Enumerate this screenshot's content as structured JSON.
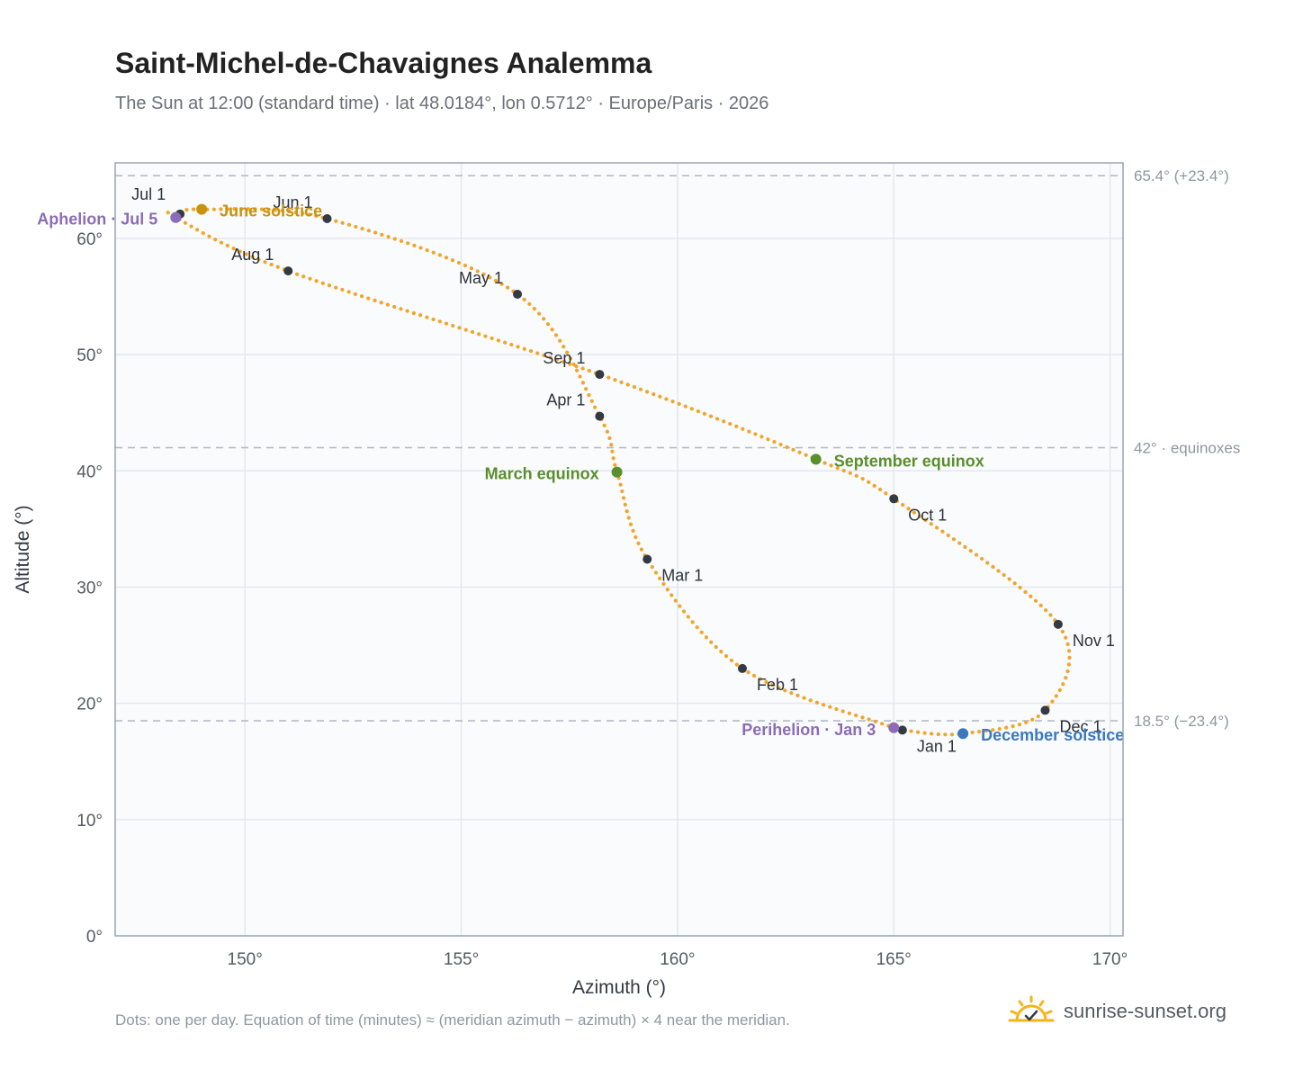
{
  "title": "Saint-Michel-de-Chavaignes Analemma",
  "subtitle": "The Sun at 12:00 (standard time) · lat 48.0184°, lon 0.5712° · Europe/Paris · 2026",
  "footnote": "Dots: one per day. Equation of time (minutes) ≈ (meridian azimuth − azimuth) × 4 near the meridian.",
  "brand": {
    "text": "sunrise-sunset.org",
    "icon": "sun-logo-icon"
  },
  "colors": {
    "curve": "#f2a52a",
    "month_marker": "#333a44",
    "solstice_june": "#c8930f",
    "solstice_december": "#3b78c0",
    "equinox": "#5a8f2c",
    "apsis": "#8c6cb8",
    "reference_line": "#b0b8c4",
    "plot_background": "#f9fbfd",
    "grid": "#e4e8ee"
  },
  "chart_data": {
    "type": "scatter",
    "xlabel": "Azimuth (°)",
    "ylabel": "Altitude (°)",
    "xlim": [
      147,
      170.3
    ],
    "ylim": [
      0,
      66.5
    ],
    "xticks": [
      150,
      155,
      160,
      165,
      170
    ],
    "yticks": [
      0,
      10,
      20,
      30,
      40,
      50,
      60
    ],
    "x_tick_labels": [
      "150°",
      "155°",
      "160°",
      "165°",
      "170°"
    ],
    "y_tick_labels": [
      "0°",
      "10°",
      "20°",
      "30°",
      "40°",
      "50°",
      "60°"
    ],
    "grid": true,
    "reference_lines": [
      {
        "altitude": 65.4,
        "label": "65.4° (+23.4°)"
      },
      {
        "altitude": 42.0,
        "label": "42° · equinoxes"
      },
      {
        "altitude": 18.5,
        "label": "18.5° (−23.4°)"
      }
    ],
    "analemma_path": [
      {
        "date": "Jan 1",
        "azimuth": 165.2,
        "altitude": 17.7
      },
      {
        "date": "Jan 3",
        "azimuth": 165.0,
        "altitude": 17.9
      },
      {
        "date": "Feb 1",
        "azimuth": 161.5,
        "altitude": 23.0
      },
      {
        "date": "Mar 1",
        "azimuth": 159.3,
        "altitude": 32.4
      },
      {
        "date": "Mar 20",
        "azimuth": 158.6,
        "altitude": 39.9
      },
      {
        "date": "Apr 1",
        "azimuth": 158.2,
        "altitude": 44.7
      },
      {
        "date": "May 1",
        "azimuth": 156.3,
        "altitude": 55.2
      },
      {
        "date": "Jun 1",
        "azimuth": 151.9,
        "altitude": 61.7
      },
      {
        "date": "Jun 21",
        "azimuth": 149.0,
        "altitude": 62.5
      },
      {
        "date": "Jul 1",
        "azimuth": 148.5,
        "altitude": 62.1
      },
      {
        "date": "Jul 5",
        "azimuth": 148.4,
        "altitude": 61.8
      },
      {
        "date": "Aug 1",
        "azimuth": 151.0,
        "altitude": 57.2
      },
      {
        "date": "Sep 1",
        "azimuth": 158.2,
        "altitude": 48.3
      },
      {
        "date": "Sep 23",
        "azimuth": 163.2,
        "altitude": 41.0
      },
      {
        "date": "Oct 1",
        "azimuth": 165.0,
        "altitude": 37.6
      },
      {
        "date": "Nov 1",
        "azimuth": 168.8,
        "altitude": 26.8
      },
      {
        "date": "Dec 1",
        "azimuth": 168.5,
        "altitude": 19.4
      },
      {
        "date": "Dec 21",
        "azimuth": 166.6,
        "altitude": 17.4
      }
    ],
    "month_markers": [
      {
        "label": "Jan 1",
        "azimuth": 165.2,
        "altitude": 17.7
      },
      {
        "label": "Feb 1",
        "azimuth": 161.5,
        "altitude": 23.0
      },
      {
        "label": "Mar 1",
        "azimuth": 159.3,
        "altitude": 32.4
      },
      {
        "label": "Apr 1",
        "azimuth": 158.2,
        "altitude": 44.7
      },
      {
        "label": "May 1",
        "azimuth": 156.3,
        "altitude": 55.2
      },
      {
        "label": "Jun 1",
        "azimuth": 151.9,
        "altitude": 61.7
      },
      {
        "label": "Jul 1",
        "azimuth": 148.5,
        "altitude": 62.1
      },
      {
        "label": "Aug 1",
        "azimuth": 151.0,
        "altitude": 57.2
      },
      {
        "label": "Sep 1",
        "azimuth": 158.2,
        "altitude": 48.3
      },
      {
        "label": "Oct 1",
        "azimuth": 165.0,
        "altitude": 37.6
      },
      {
        "label": "Nov 1",
        "azimuth": 168.8,
        "altitude": 26.8
      },
      {
        "label": "Dec 1",
        "azimuth": 168.5,
        "altitude": 19.4
      }
    ],
    "events": [
      {
        "label": "June solstice",
        "azimuth": 149.0,
        "altitude": 62.5,
        "kind": "solstice_june"
      },
      {
        "label": "December solstice",
        "azimuth": 166.6,
        "altitude": 17.4,
        "kind": "solstice_december"
      },
      {
        "label": "March equinox",
        "azimuth": 158.6,
        "altitude": 39.9,
        "kind": "equinox"
      },
      {
        "label": "September equinox",
        "azimuth": 163.2,
        "altitude": 41.0,
        "kind": "equinox"
      },
      {
        "label": "Aphelion · Jul 5",
        "azimuth": 148.4,
        "altitude": 61.8,
        "kind": "apsis"
      },
      {
        "label": "Perihelion · Jan 3",
        "azimuth": 165.0,
        "altitude": 17.9,
        "kind": "apsis"
      }
    ]
  }
}
